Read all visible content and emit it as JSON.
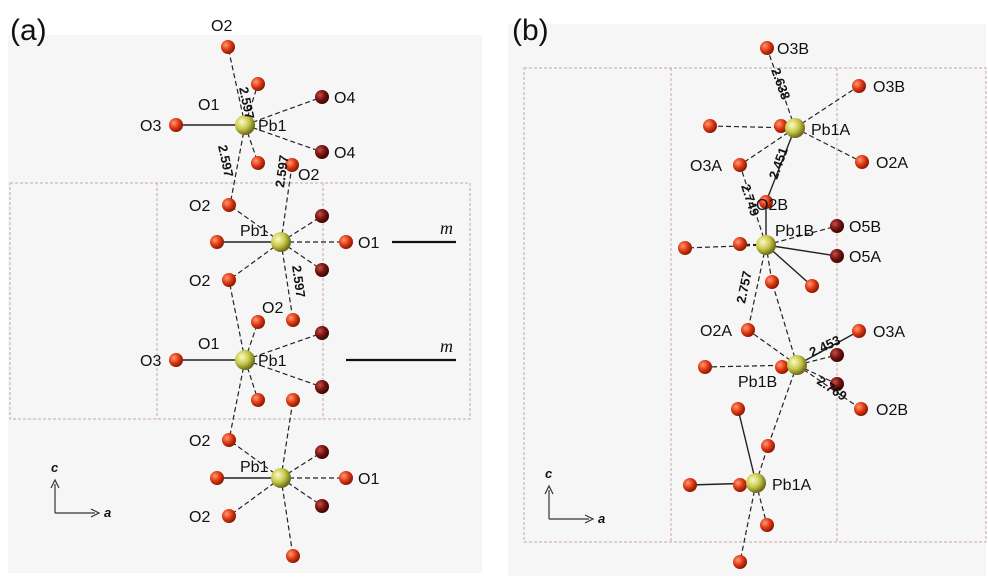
{
  "panels": [
    {
      "label": "(a)",
      "atom_labels": {
        "o2_top": "O2",
        "o1_top": "O1",
        "o3_top": "O3",
        "pb1_top": "Pb1",
        "o4_upper": "O4",
        "o4_lower": "O4",
        "o2_right_mid": "O2",
        "o2_left_mid": "O2",
        "pb1_mid": "Pb1",
        "o1_mid": "O1",
        "o2_left_lower": "O2",
        "o2_center_lower": "O2",
        "o1_lower": "O1",
        "o3_lower": "O3",
        "pb1_lower": "Pb1",
        "o2_left_bottom": "O2",
        "pb1_bottom": "Pb1",
        "o1_bottom": "O1",
        "o2_left_bottom2": "O2"
      },
      "distances": {
        "d1": "2.597",
        "d2": "2.597",
        "d3": "2.597",
        "d4": "2.597"
      },
      "mirror_labels": [
        "m",
        "m"
      ],
      "axes": {
        "vertical": "c",
        "horizontal": "a"
      }
    },
    {
      "label": "(b)",
      "atom_labels": {
        "o3b_top": "O3B",
        "o3b_right": "O3B",
        "pb1a_top": "Pb1A",
        "o2a_right": "O2A",
        "o3a_left": "O3A",
        "o2b_mid": "O2B",
        "pb1b_upper": "Pb1B",
        "o5b": "O5B",
        "o5a": "O5A",
        "o2a_left": "O2A",
        "o3a_right": "O3A",
        "pb1b_lower": "Pb1B",
        "o2b_right": "O2B",
        "pb1a_bottom": "Pb1A"
      },
      "distances": {
        "d1": "2.638",
        "d2": "2.451",
        "d3": "2.749",
        "d4": "2.757",
        "d5": "2.453",
        "d6": "2.769"
      },
      "axes": {
        "vertical": "c",
        "horizontal": "a"
      }
    }
  ],
  "colors": {
    "oxygen": "#e23a12",
    "oxygen_dark": "#7a1410",
    "lead": "#c8c84a",
    "cell_edge": "#c9a7a2",
    "panel_bg": "#f6f6f6"
  }
}
